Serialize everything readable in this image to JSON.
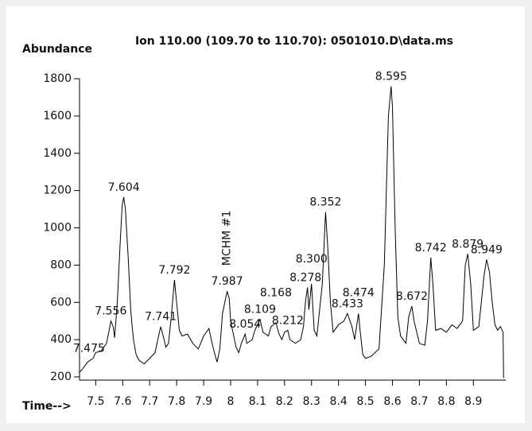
{
  "chart_data": {
    "type": "line",
    "title": "Ion 110.00 (109.70 to 110.70): 0501010.D\\data.ms",
    "y_label": "Abundance",
    "x_label": "Time-->",
    "color": "#000000",
    "xlim": [
      7.44,
      9.02
    ],
    "ylim": [
      183,
      1800
    ],
    "xticks": [
      7.5,
      7.6,
      7.7,
      7.8,
      7.9,
      8,
      8.1,
      8.2,
      8.3,
      8.4,
      8.5,
      8.6,
      8.7,
      8.8,
      8.9
    ],
    "yticks": [
      200,
      400,
      600,
      800,
      1000,
      1200,
      1400,
      1600,
      1800
    ],
    "x": [
      7.44,
      7.45,
      7.47,
      7.49,
      7.5,
      7.52,
      7.54,
      7.55,
      7.556,
      7.565,
      7.57,
      7.58,
      7.59,
      7.598,
      7.604,
      7.61,
      7.62,
      7.63,
      7.64,
      7.65,
      7.66,
      7.68,
      7.7,
      7.72,
      7.73,
      7.741,
      7.75,
      7.76,
      7.77,
      7.78,
      7.792,
      7.8,
      7.81,
      7.82,
      7.84,
      7.86,
      7.88,
      7.9,
      7.92,
      7.93,
      7.94,
      7.95,
      7.96,
      7.97,
      7.987,
      7.995,
      8,
      8.02,
      8.03,
      8.04,
      8.054,
      8.06,
      8.08,
      8.09,
      8.1,
      8.109,
      8.12,
      8.14,
      8.15,
      8.168,
      8.18,
      8.19,
      8.2,
      8.212,
      8.22,
      8.24,
      8.26,
      8.27,
      8.278,
      8.285,
      8.29,
      8.3,
      8.31,
      8.32,
      8.34,
      8.352,
      8.36,
      8.37,
      8.38,
      8.4,
      8.42,
      8.433,
      8.45,
      8.46,
      8.474,
      8.48,
      8.49,
      8.5,
      8.52,
      8.55,
      8.57,
      8.585,
      8.595,
      8.6,
      8.61,
      8.62,
      8.63,
      8.65,
      8.66,
      8.672,
      8.68,
      8.7,
      8.72,
      8.73,
      8.742,
      8.75,
      8.76,
      8.78,
      8.8,
      8.82,
      8.84,
      8.86,
      8.87,
      8.879,
      8.89,
      8.9,
      8.92,
      8.94,
      8.949,
      8.96,
      8.97,
      8.98,
      8.99,
      9,
      9.01,
      9.012
    ],
    "values": [
      225,
      240,
      280,
      300,
      330,
      340,
      380,
      450,
      500,
      470,
      410,
      600,
      900,
      1120,
      1165,
      1100,
      850,
      550,
      400,
      320,
      290,
      270,
      300,
      330,
      400,
      470,
      420,
      360,
      380,
      520,
      720,
      600,
      450,
      420,
      430,
      380,
      350,
      420,
      460,
      390,
      330,
      280,
      350,
      540,
      660,
      620,
      500,
      360,
      330,
      380,
      430,
      380,
      400,
      450,
      480,
      510,
      440,
      420,
      470,
      490,
      430,
      400,
      440,
      450,
      400,
      380,
      400,
      470,
      610,
      680,
      560,
      700,
      450,
      420,
      700,
      1085,
      900,
      600,
      440,
      480,
      500,
      540,
      470,
      400,
      540,
      450,
      320,
      300,
      310,
      350,
      800,
      1600,
      1760,
      1650,
      1000,
      520,
      420,
      380,
      520,
      580,
      500,
      380,
      370,
      500,
      840,
      700,
      450,
      460,
      440,
      480,
      460,
      500,
      800,
      860,
      700,
      450,
      470,
      750,
      830,
      760,
      600,
      480,
      450,
      470,
      440,
      195
    ],
    "annotations": [
      {
        "text": "7.475",
        "x": 7.475,
        "y": 300
      },
      {
        "text": "7.556",
        "x": 7.556,
        "y": 500
      },
      {
        "text": "7.604",
        "x": 7.604,
        "y": 1165
      },
      {
        "text": "7.741",
        "x": 7.741,
        "y": 470
      },
      {
        "text": "7.792",
        "x": 7.792,
        "y": 720
      },
      {
        "text": "7.987",
        "x": 7.987,
        "y": 660
      },
      {
        "text": "8.054",
        "x": 8.054,
        "y": 430
      },
      {
        "text": "8.109",
        "x": 8.109,
        "y": 510
      },
      {
        "text": "8.168",
        "x": 8.168,
        "y": 600
      },
      {
        "text": "8.212",
        "x": 8.212,
        "y": 450
      },
      {
        "text": "8.278",
        "x": 8.278,
        "y": 680
      },
      {
        "text": "8.300",
        "x": 8.3,
        "y": 780
      },
      {
        "text": "8.352",
        "x": 8.352,
        "y": 1085
      },
      {
        "text": "8.433",
        "x": 8.433,
        "y": 540
      },
      {
        "text": "8.474",
        "x": 8.474,
        "y": 600
      },
      {
        "text": "8.595",
        "x": 8.595,
        "y": 1760
      },
      {
        "text": "8.672",
        "x": 8.672,
        "y": 580
      },
      {
        "text": "8.742",
        "x": 8.742,
        "y": 840
      },
      {
        "text": "8.879",
        "x": 8.879,
        "y": 860
      },
      {
        "text": "8.949",
        "x": 8.949,
        "y": 830
      }
    ],
    "rotated_label": {
      "text": "MCHM #1",
      "x": 7.987,
      "y": 660
    }
  }
}
